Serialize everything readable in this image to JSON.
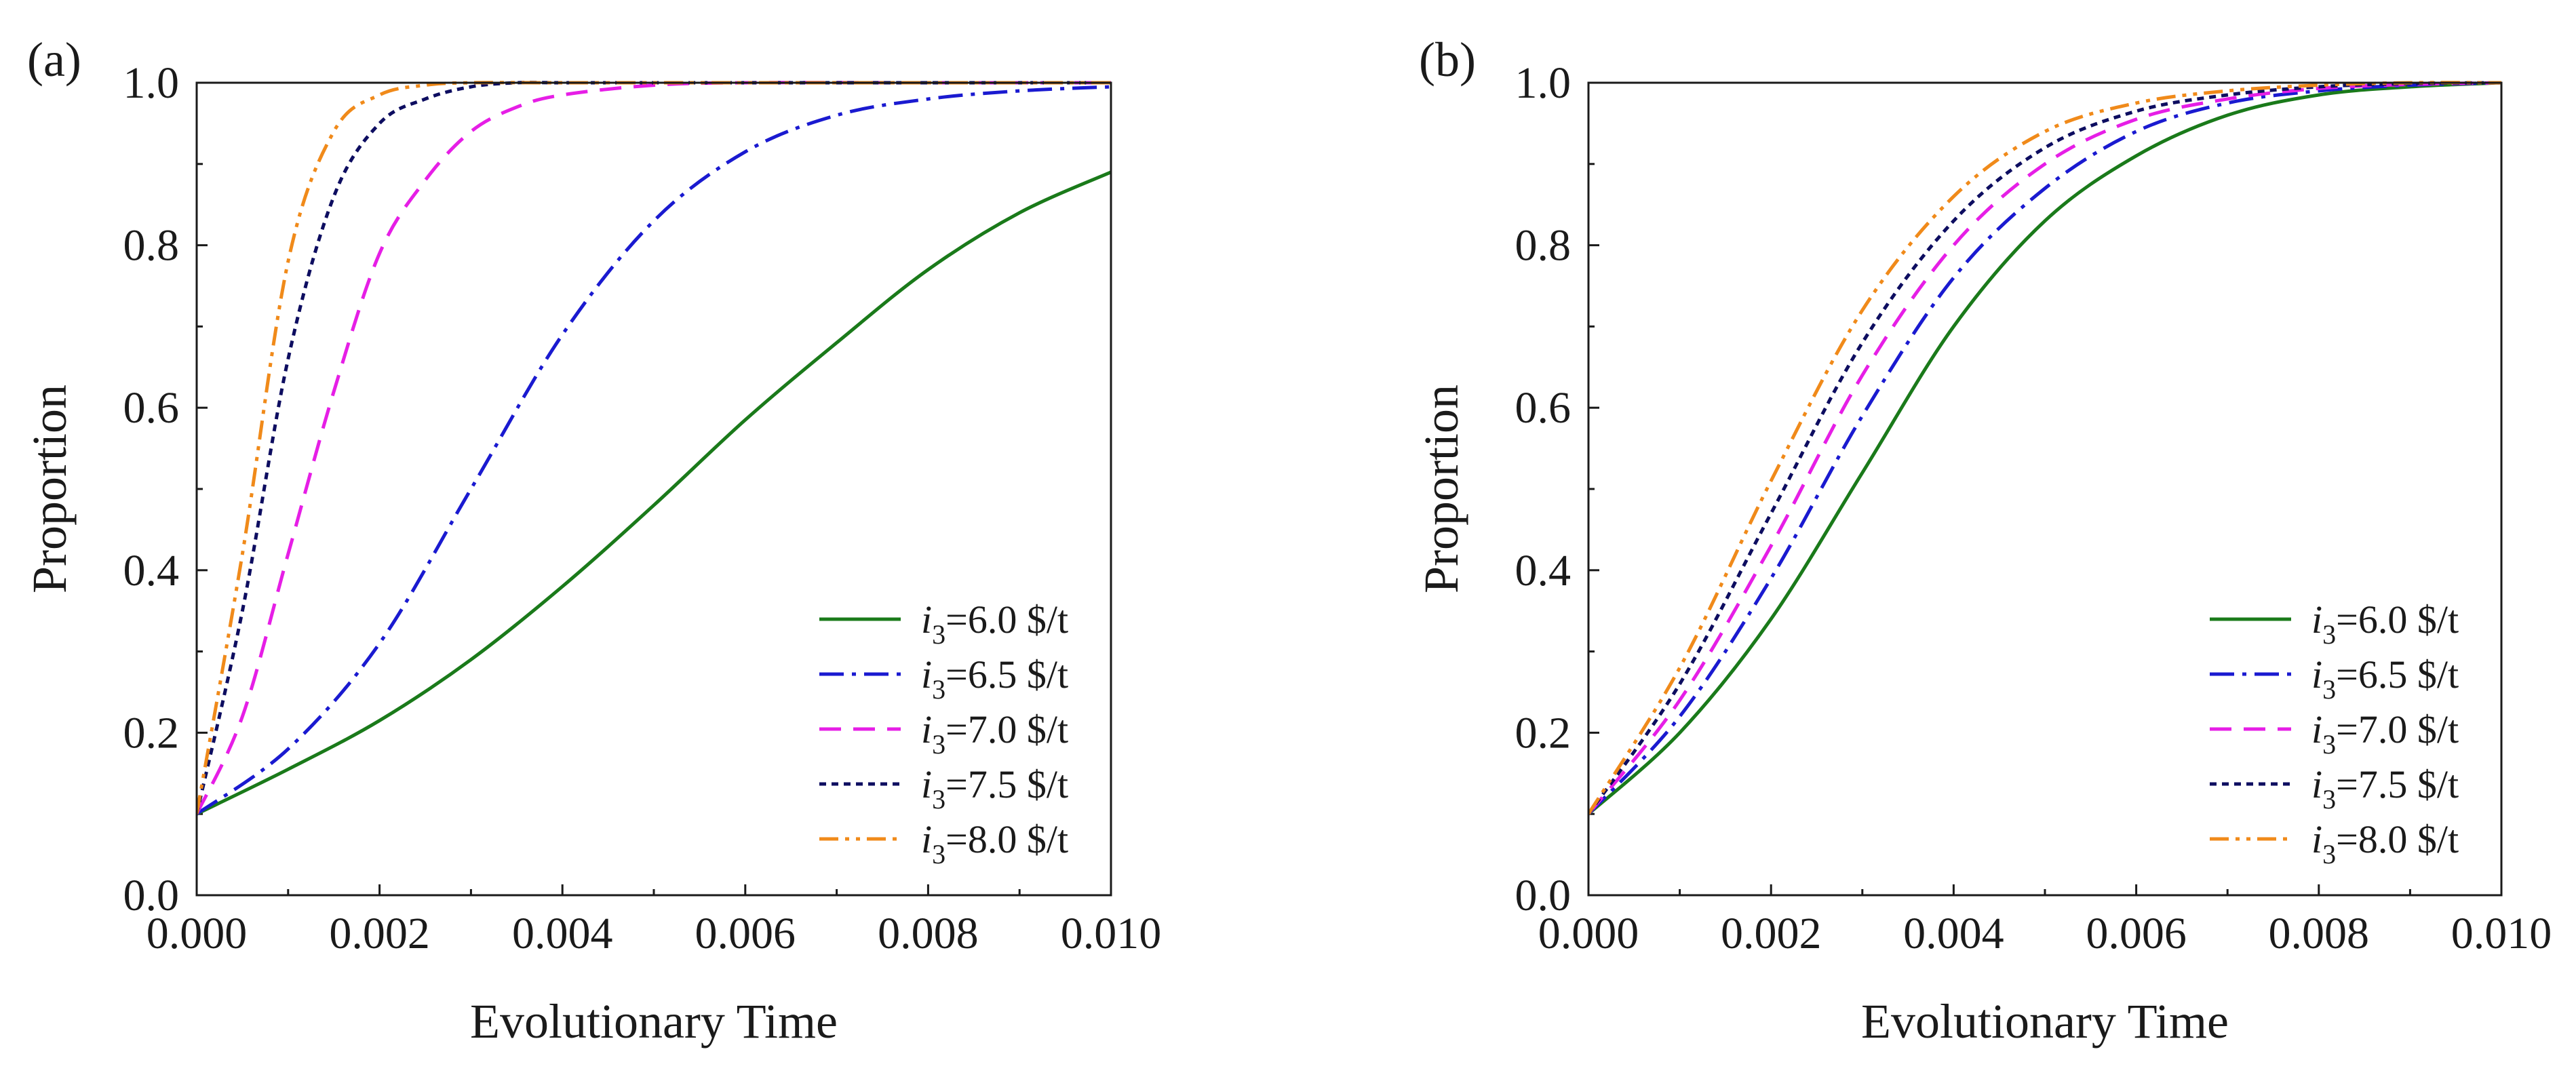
{
  "chart_data": [
    {
      "type": "line",
      "panel_label": "(a)",
      "xlabel": "Evolutionary Time",
      "ylabel": "Proportion",
      "xlim": [
        0,
        0.01
      ],
      "ylim": [
        0,
        1.0
      ],
      "xticks": [
        "0.000",
        "0.002",
        "0.004",
        "0.006",
        "0.008",
        "0.010"
      ],
      "yticks": [
        "0.0",
        "0.2",
        "0.4",
        "0.6",
        "0.8",
        "1.0"
      ],
      "legend_position": "bottom-right",
      "series": [
        {
          "name": "i3=6.0 $/t",
          "var": "i",
          "sub": "3",
          "rest": "=6.0  $/t",
          "color": "#1a7a1a",
          "style": "solid",
          "x": [
            0,
            0.001,
            0.002,
            0.003,
            0.004,
            0.005,
            0.006,
            0.007,
            0.008,
            0.009,
            0.01
          ],
          "y": [
            0.1,
            0.155,
            0.215,
            0.29,
            0.38,
            0.48,
            0.585,
            0.68,
            0.77,
            0.84,
            0.89
          ]
        },
        {
          "name": "i3=6.5 $/t",
          "var": "i",
          "sub": "3",
          "rest": "=6.5  $/t",
          "color": "#1a1ad0",
          "style": "dashdot",
          "x": [
            0,
            0.001,
            0.002,
            0.003,
            0.004,
            0.005,
            0.006,
            0.007,
            0.008,
            0.009,
            0.01
          ],
          "y": [
            0.1,
            0.18,
            0.31,
            0.5,
            0.69,
            0.83,
            0.915,
            0.96,
            0.98,
            0.99,
            0.995
          ]
        },
        {
          "name": "i3=7.0 $/t",
          "var": "i",
          "sub": "3",
          "rest": "=7.0  $/t",
          "color": "#e61ee6",
          "style": "dash",
          "x": [
            0,
            0.0005,
            0.001,
            0.0015,
            0.002,
            0.0025,
            0.003,
            0.0035,
            0.004,
            0.005,
            0.006,
            0.008,
            0.01
          ],
          "y": [
            0.1,
            0.22,
            0.42,
            0.62,
            0.79,
            0.88,
            0.94,
            0.97,
            0.985,
            0.997,
            1.0,
            1.0,
            1.0
          ]
        },
        {
          "name": "i3=7.5 $/t",
          "var": "i",
          "sub": "3",
          "rest": "=7.5  $/t",
          "color": "#0d0d60",
          "style": "dot",
          "x": [
            0,
            0.0005,
            0.001,
            0.0015,
            0.002,
            0.0025,
            0.003,
            0.0035,
            0.004,
            0.005,
            0.006,
            0.008,
            0.01
          ],
          "y": [
            0.1,
            0.35,
            0.66,
            0.86,
            0.95,
            0.98,
            0.995,
            1.0,
            1.0,
            1.0,
            1.0,
            1.0,
            1.0
          ]
        },
        {
          "name": "i3=8.0 $/t",
          "var": "i",
          "sub": "3",
          "rest": "=8.0  $/t",
          "color": "#f08a1a",
          "style": "dashdotdot",
          "x": [
            0,
            0.0005,
            0.001,
            0.0015,
            0.002,
            0.0025,
            0.003,
            0.004,
            0.006,
            0.008,
            0.01
          ],
          "y": [
            0.1,
            0.42,
            0.78,
            0.94,
            0.985,
            0.997,
            1.0,
            1.0,
            1.0,
            1.0,
            1.0
          ]
        }
      ]
    },
    {
      "type": "line",
      "panel_label": "(b)",
      "xlabel": "Evolutionary Time",
      "ylabel": "Proportion",
      "xlim": [
        0,
        0.01
      ],
      "ylim": [
        0,
        1.0
      ],
      "xticks": [
        "0.000",
        "0.002",
        "0.004",
        "0.006",
        "0.008",
        "0.010"
      ],
      "yticks": [
        "0.0",
        "0.2",
        "0.4",
        "0.6",
        "0.8",
        "1.0"
      ],
      "legend_position": "bottom-right",
      "series": [
        {
          "name": "i3=6.0 $/t",
          "var": "i",
          "sub": "3",
          "rest": "=6.0  $/t",
          "color": "#1a7a1a",
          "style": "solid",
          "x": [
            0,
            0.001,
            0.002,
            0.003,
            0.004,
            0.005,
            0.006,
            0.007,
            0.008,
            0.009,
            0.01
          ],
          "y": [
            0.1,
            0.2,
            0.34,
            0.52,
            0.7,
            0.83,
            0.91,
            0.96,
            0.985,
            0.995,
            1.0
          ]
        },
        {
          "name": "i3=6.5 $/t",
          "var": "i",
          "sub": "3",
          "rest": "=6.5  $/t",
          "color": "#1a1ad0",
          "style": "dashdot",
          "x": [
            0,
            0.001,
            0.002,
            0.003,
            0.004,
            0.005,
            0.006,
            0.007,
            0.008,
            0.009,
            0.01
          ],
          "y": [
            0.1,
            0.22,
            0.39,
            0.59,
            0.76,
            0.87,
            0.94,
            0.975,
            0.99,
            0.997,
            1.0
          ]
        },
        {
          "name": "i3=7.0 $/t",
          "var": "i",
          "sub": "3",
          "rest": "=7.0  $/t",
          "color": "#e61ee6",
          "style": "dash",
          "x": [
            0,
            0.001,
            0.002,
            0.003,
            0.004,
            0.005,
            0.006,
            0.007,
            0.008,
            0.009,
            0.01
          ],
          "y": [
            0.1,
            0.24,
            0.43,
            0.64,
            0.8,
            0.9,
            0.955,
            0.98,
            0.993,
            0.998,
            1.0
          ]
        },
        {
          "name": "i3=7.5 $/t",
          "var": "i",
          "sub": "3",
          "rest": "=7.5  $/t",
          "color": "#0d0d60",
          "style": "dot",
          "x": [
            0,
            0.001,
            0.002,
            0.003,
            0.004,
            0.005,
            0.006,
            0.007,
            0.008,
            0.009,
            0.01
          ],
          "y": [
            0.1,
            0.26,
            0.47,
            0.68,
            0.83,
            0.92,
            0.965,
            0.985,
            0.995,
            0.999,
            1.0
          ]
        },
        {
          "name": "i3=8.0 $/t",
          "var": "i",
          "sub": "3",
          "rest": "=8.0  $/t",
          "color": "#f08a1a",
          "style": "dashdotdot",
          "x": [
            0,
            0.001,
            0.002,
            0.003,
            0.004,
            0.005,
            0.006,
            0.007,
            0.008,
            0.009,
            0.01
          ],
          "y": [
            0.1,
            0.28,
            0.51,
            0.72,
            0.86,
            0.94,
            0.975,
            0.99,
            0.997,
            1.0,
            1.0
          ]
        }
      ]
    }
  ]
}
